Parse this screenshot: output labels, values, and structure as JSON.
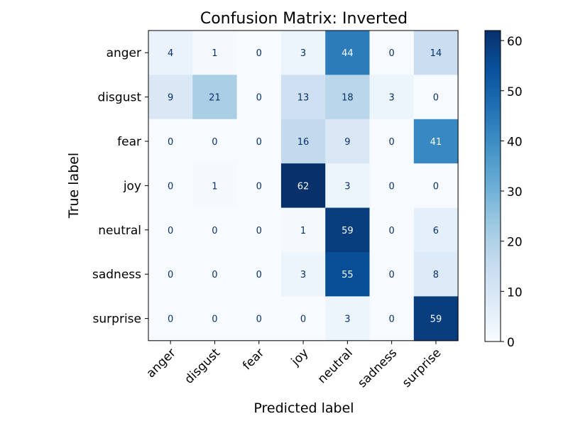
{
  "chart_data": {
    "type": "heatmap",
    "title": "Confusion Matrix: Inverted",
    "xlabel": "Predicted label",
    "ylabel": "True label",
    "x_categories": [
      "anger",
      "disgust",
      "fear",
      "joy",
      "neutral",
      "sadness",
      "surprise"
    ],
    "y_categories": [
      "anger",
      "disgust",
      "fear",
      "joy",
      "neutral",
      "sadness",
      "surprise"
    ],
    "values": [
      [
        4,
        1,
        0,
        3,
        44,
        0,
        14
      ],
      [
        9,
        21,
        0,
        13,
        18,
        3,
        0
      ],
      [
        0,
        0,
        0,
        16,
        9,
        0,
        41
      ],
      [
        0,
        1,
        0,
        62,
        3,
        0,
        0
      ],
      [
        0,
        0,
        0,
        1,
        59,
        0,
        6
      ],
      [
        0,
        0,
        0,
        3,
        55,
        0,
        8
      ],
      [
        0,
        0,
        0,
        0,
        3,
        0,
        59
      ]
    ],
    "colormap": "Blues",
    "colorbar": {
      "range": [
        0,
        62
      ],
      "ticks": [
        0,
        10,
        20,
        30,
        40,
        50,
        60
      ]
    },
    "grid": false
  }
}
